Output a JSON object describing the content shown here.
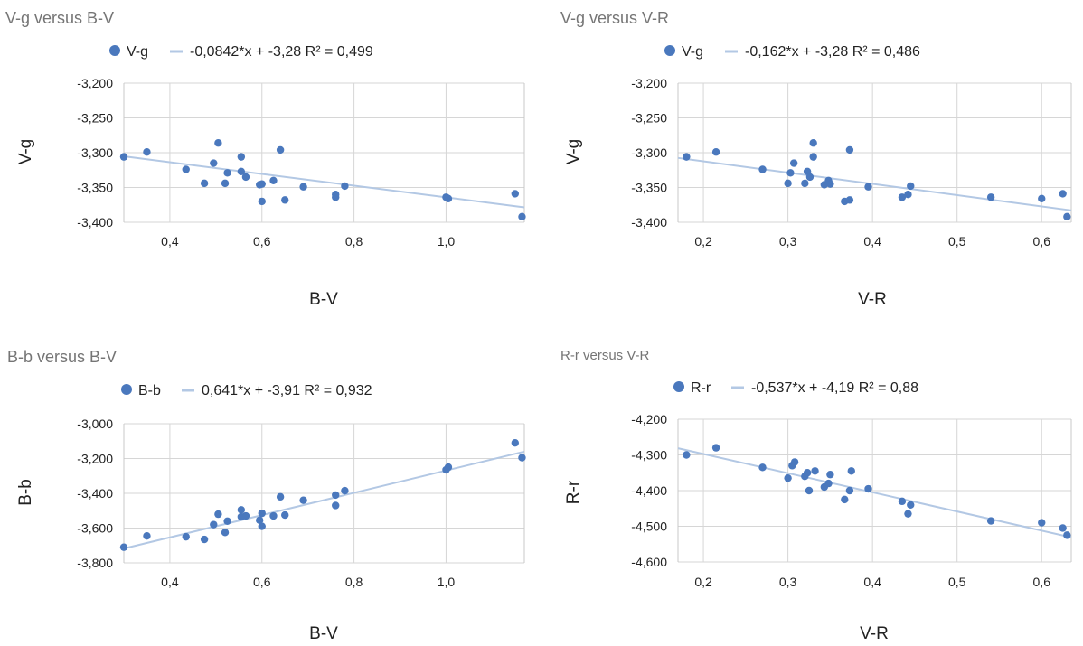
{
  "colors": {
    "point": "#4a78bd",
    "trend": "#b3c8e4",
    "grid": "#d6d6d6"
  },
  "chart_data": [
    {
      "type": "scatter",
      "title": "V-g versus B-V",
      "xlabel": "B-V",
      "ylabel": "V-g",
      "legend": {
        "series": "V-g",
        "trend": "-0,0842*x + -3,28 R² = 0,499"
      },
      "xlim": [
        0.3,
        1.17
      ],
      "xticks": [
        "0,4",
        "0,6",
        "0,8",
        "1,0"
      ],
      "xtick_values": [
        0.4,
        0.6,
        0.8,
        1.0
      ],
      "ylim": [
        -3.4,
        -3.2
      ],
      "yticks": [
        "-3,200",
        "-3,250",
        "-3,300",
        "-3,350",
        "-3,400"
      ],
      "ytick_values": [
        -3.2,
        -3.25,
        -3.3,
        -3.35,
        -3.4
      ],
      "trendline": {
        "slope": -0.0842,
        "intercept": -3.28
      },
      "series": [
        {
          "name": "V-g",
          "points": [
            [
              0.3,
              -3.306
            ],
            [
              0.35,
              -3.299
            ],
            [
              0.435,
              -3.324
            ],
            [
              0.475,
              -3.344
            ],
            [
              0.495,
              -3.315
            ],
            [
              0.505,
              -3.286
            ],
            [
              0.52,
              -3.344
            ],
            [
              0.525,
              -3.329
            ],
            [
              0.555,
              -3.306
            ],
            [
              0.555,
              -3.327
            ],
            [
              0.565,
              -3.335
            ],
            [
              0.595,
              -3.346
            ],
            [
              0.6,
              -3.345
            ],
            [
              0.6,
              -3.37
            ],
            [
              0.625,
              -3.34
            ],
            [
              0.64,
              -3.296
            ],
            [
              0.65,
              -3.368
            ],
            [
              0.69,
              -3.349
            ],
            [
              0.76,
              -3.36
            ],
            [
              0.76,
              -3.364
            ],
            [
              0.78,
              -3.348
            ],
            [
              1.0,
              -3.364
            ],
            [
              1.005,
              -3.366
            ],
            [
              1.15,
              -3.359
            ],
            [
              1.165,
              -3.392
            ]
          ]
        }
      ]
    },
    {
      "type": "scatter",
      "title": "V-g versus V-R",
      "xlabel": "V-R",
      "ylabel": "V-g",
      "legend": {
        "series": "V-g",
        "trend": "-0,162*x + -3,28 R² = 0,486"
      },
      "xlim": [
        0.17,
        0.635
      ],
      "xticks": [
        "0,2",
        "0,3",
        "0,4",
        "0,5",
        "0,6"
      ],
      "xtick_values": [
        0.2,
        0.3,
        0.4,
        0.5,
        0.6
      ],
      "ylim": [
        -3.4,
        -3.2
      ],
      "yticks": [
        "-3,200",
        "-3,250",
        "-3,300",
        "-3,350",
        "-3,400"
      ],
      "ytick_values": [
        -3.2,
        -3.25,
        -3.3,
        -3.35,
        -3.4
      ],
      "trendline": {
        "slope": -0.162,
        "intercept": -3.28
      },
      "series": [
        {
          "name": "V-g",
          "points": [
            [
              0.18,
              -3.306
            ],
            [
              0.215,
              -3.299
            ],
            [
              0.27,
              -3.324
            ],
            [
              0.3,
              -3.344
            ],
            [
              0.303,
              -3.329
            ],
            [
              0.307,
              -3.315
            ],
            [
              0.32,
              -3.344
            ],
            [
              0.323,
              -3.327
            ],
            [
              0.326,
              -3.335
            ],
            [
              0.33,
              -3.306
            ],
            [
              0.33,
              -3.286
            ],
            [
              0.343,
              -3.346
            ],
            [
              0.348,
              -3.34
            ],
            [
              0.35,
              -3.345
            ],
            [
              0.367,
              -3.37
            ],
            [
              0.373,
              -3.368
            ],
            [
              0.373,
              -3.296
            ],
            [
              0.395,
              -3.349
            ],
            [
              0.435,
              -3.364
            ],
            [
              0.442,
              -3.36
            ],
            [
              0.445,
              -3.348
            ],
            [
              0.54,
              -3.364
            ],
            [
              0.6,
              -3.366
            ],
            [
              0.625,
              -3.359
            ],
            [
              0.63,
              -3.392
            ]
          ]
        }
      ]
    },
    {
      "type": "scatter",
      "title": "B-b versus B-V",
      "xlabel": "B-V",
      "ylabel": "B-b",
      "legend": {
        "series": "B-b",
        "trend": "0,641*x + -3,91 R² = 0,932"
      },
      "xlim": [
        0.3,
        1.17
      ],
      "xticks": [
        "0,4",
        "0,6",
        "0,8",
        "1,0"
      ],
      "xtick_values": [
        0.4,
        0.6,
        0.8,
        1.0
      ],
      "ylim": [
        -3.8,
        -3.0
      ],
      "yticks": [
        "-3,000",
        "-3,200",
        "-3,400",
        "-3,600",
        "-3,800"
      ],
      "ytick_values": [
        -3.0,
        -3.2,
        -3.4,
        -3.6,
        -3.8
      ],
      "trendline": {
        "slope": 0.641,
        "intercept": -3.91
      },
      "series": [
        {
          "name": "B-b",
          "points": [
            [
              0.3,
              -3.71
            ],
            [
              0.35,
              -3.645
            ],
            [
              0.435,
              -3.65
            ],
            [
              0.475,
              -3.665
            ],
            [
              0.495,
              -3.58
            ],
            [
              0.505,
              -3.52
            ],
            [
              0.52,
              -3.625
            ],
            [
              0.525,
              -3.56
            ],
            [
              0.555,
              -3.495
            ],
            [
              0.555,
              -3.535
            ],
            [
              0.565,
              -3.53
            ],
            [
              0.595,
              -3.555
            ],
            [
              0.6,
              -3.59
            ],
            [
              0.6,
              -3.515
            ],
            [
              0.625,
              -3.53
            ],
            [
              0.64,
              -3.42
            ],
            [
              0.65,
              -3.525
            ],
            [
              0.69,
              -3.44
            ],
            [
              0.76,
              -3.41
            ],
            [
              0.76,
              -3.47
            ],
            [
              0.78,
              -3.385
            ],
            [
              1.0,
              -3.265
            ],
            [
              1.005,
              -3.25
            ],
            [
              1.15,
              -3.11
            ],
            [
              1.165,
              -3.195
            ]
          ]
        }
      ]
    },
    {
      "type": "scatter",
      "title": "R-r versus V-R",
      "xlabel": "V-R",
      "ylabel": "R-r",
      "legend": {
        "series": "R-r",
        "trend": "-0,537*x + -4,19 R² = 0,88"
      },
      "xlim": [
        0.17,
        0.635
      ],
      "xticks": [
        "0,2",
        "0,3",
        "0,4",
        "0,5",
        "0,6"
      ],
      "xtick_values": [
        0.2,
        0.3,
        0.4,
        0.5,
        0.6
      ],
      "ylim": [
        -4.6,
        -4.2
      ],
      "yticks": [
        "-4,200",
        "-4,300",
        "-4,400",
        "-4,500",
        "-4,600"
      ],
      "ytick_values": [
        -4.2,
        -4.3,
        -4.4,
        -4.5,
        -4.6
      ],
      "trendline": {
        "slope": -0.537,
        "intercept": -4.19
      },
      "series": [
        {
          "name": "R-r",
          "points": [
            [
              0.18,
              -4.3
            ],
            [
              0.215,
              -4.28
            ],
            [
              0.27,
              -4.335
            ],
            [
              0.3,
              -4.365
            ],
            [
              0.305,
              -4.33
            ],
            [
              0.308,
              -4.32
            ],
            [
              0.32,
              -4.36
            ],
            [
              0.323,
              -4.35
            ],
            [
              0.325,
              -4.4
            ],
            [
              0.332,
              -4.345
            ],
            [
              0.343,
              -4.39
            ],
            [
              0.348,
              -4.38
            ],
            [
              0.35,
              -4.355
            ],
            [
              0.367,
              -4.425
            ],
            [
              0.373,
              -4.4
            ],
            [
              0.375,
              -4.345
            ],
            [
              0.395,
              -4.395
            ],
            [
              0.435,
              -4.43
            ],
            [
              0.442,
              -4.465
            ],
            [
              0.445,
              -4.44
            ],
            [
              0.54,
              -4.485
            ],
            [
              0.6,
              -4.49
            ],
            [
              0.625,
              -4.505
            ],
            [
              0.63,
              -4.525
            ]
          ]
        }
      ]
    }
  ]
}
